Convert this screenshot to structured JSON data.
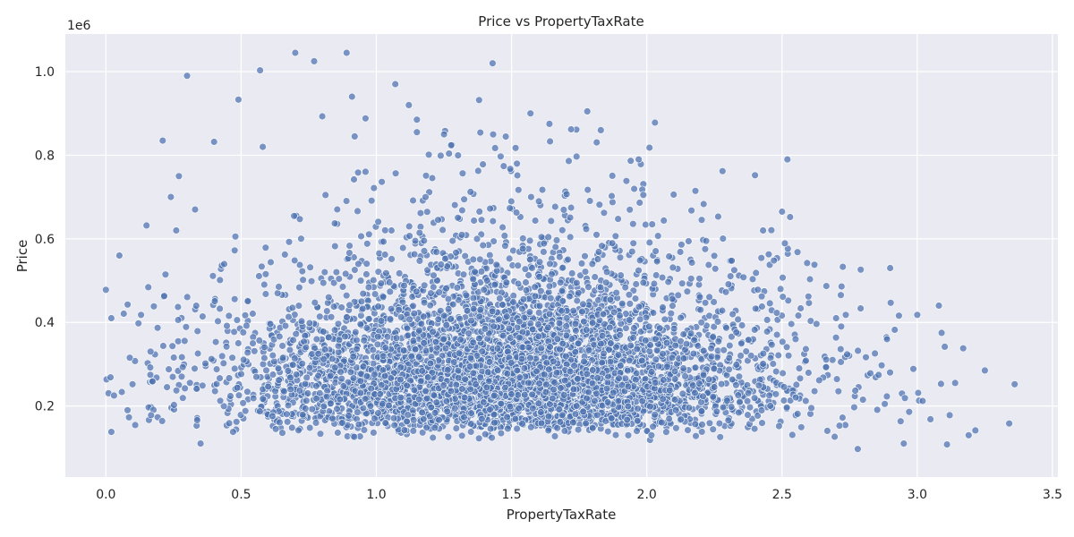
{
  "chart_data": {
    "type": "scatter",
    "title": "Price vs PropertyTaxRate",
    "xlabel": "PropertyTaxRate",
    "ylabel": "Price",
    "y_offset_label": "1e6",
    "xlim": [
      -0.15,
      3.52
    ],
    "ylim": [
      30000,
      1090000
    ],
    "x_ticks": [
      0.0,
      0.5,
      1.0,
      1.5,
      2.0,
      2.5,
      3.0,
      3.5
    ],
    "x_tick_labels": [
      "0.0",
      "0.5",
      "1.0",
      "1.5",
      "2.0",
      "2.5",
      "3.0",
      "3.5"
    ],
    "y_ticks": [
      200000,
      400000,
      600000,
      800000,
      1000000
    ],
    "y_tick_labels": [
      "0.2",
      "0.4",
      "0.6",
      "0.8",
      "1.0"
    ],
    "grid": true,
    "colors": {
      "background": "#eaeaf2",
      "grid": "#ffffff",
      "point": "#4c72b0",
      "point_edge": "#ffffff"
    },
    "series": [
      {
        "points_sample": [
          [
            0.7,
            1045000
          ],
          [
            0.89,
            1045000
          ],
          [
            0.77,
            1025000
          ],
          [
            1.43,
            1020000
          ],
          [
            0.57,
            1003000
          ],
          [
            0.3,
            990000
          ],
          [
            1.07,
            970000
          ],
          [
            0.91,
            940000
          ],
          [
            0.49,
            933000
          ],
          [
            1.38,
            932000
          ],
          [
            1.12,
            920000
          ],
          [
            1.78,
            905000
          ],
          [
            1.57,
            900000
          ],
          [
            0.8,
            893000
          ],
          [
            0.96,
            888000
          ],
          [
            1.15,
            885000
          ],
          [
            2.03,
            878000
          ],
          [
            1.64,
            875000
          ],
          [
            1.72,
            862000
          ],
          [
            1.83,
            860000
          ],
          [
            1.15,
            855000
          ],
          [
            1.25,
            850000
          ],
          [
            0.21,
            835000
          ],
          [
            0.4,
            832000
          ],
          [
            2.01,
            818000
          ],
          [
            2.52,
            790000
          ],
          [
            2.4,
            752000
          ],
          [
            0.58,
            820000
          ],
          [
            0.05,
            560000
          ],
          [
            0.0,
            478000
          ],
          [
            0.02,
            410000
          ],
          [
            0.03,
            225000
          ],
          [
            0.02,
            138000
          ],
          [
            0.13,
            418000
          ],
          [
            0.15,
            632000
          ],
          [
            0.26,
            620000
          ],
          [
            0.33,
            670000
          ],
          [
            0.24,
            700000
          ],
          [
            0.27,
            750000
          ],
          [
            2.5,
            665000
          ],
          [
            2.53,
            652000
          ],
          [
            2.62,
            538000
          ],
          [
            2.9,
            530000
          ],
          [
            2.72,
            486000
          ],
          [
            3.0,
            418000
          ],
          [
            3.08,
            440000
          ],
          [
            3.09,
            375000
          ],
          [
            3.17,
            338000
          ],
          [
            3.25,
            285000
          ],
          [
            3.36,
            252000
          ],
          [
            3.14,
            255000
          ],
          [
            3.02,
            212000
          ],
          [
            2.97,
            186000
          ],
          [
            3.12,
            178000
          ],
          [
            3.34,
            158000
          ],
          [
            3.19,
            130000
          ],
          [
            3.11,
            108000
          ],
          [
            2.95,
            110000
          ],
          [
            2.88,
            205000
          ],
          [
            2.78,
            97000
          ],
          [
            0.35,
            110000
          ],
          [
            0.92,
            845000
          ],
          [
            1.52,
            780000
          ],
          [
            1.97,
            790000
          ],
          [
            2.28,
            762000
          ],
          [
            2.43,
            620000
          ],
          [
            2.47,
            548000
          ],
          [
            2.55,
            360000
          ],
          [
            2.7,
            410000
          ],
          [
            0.08,
            190000
          ]
        ]
      }
    ]
  }
}
